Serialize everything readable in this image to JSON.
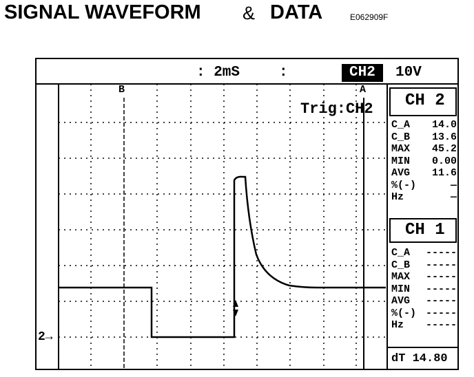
{
  "header": {
    "title": "SIGNAL WAVEFORM",
    "ampersand": "&",
    "title_end": "DATA",
    "code": "E062909F"
  },
  "scope": {
    "timebase_left": ": 2mS",
    "timebase_right": ":",
    "channel": "CH2",
    "volts": "10V",
    "cursor_b": "B",
    "cursor_a": "A",
    "trigger": "Trig:CH2",
    "ground_marker": "2→",
    "ch2": {
      "title": "CH 2",
      "rows": [
        [
          "C_A",
          "14.0"
        ],
        [
          "C_B",
          "13.6"
        ],
        [
          "MAX",
          "45.2"
        ],
        [
          "MIN",
          "0.00"
        ],
        [
          "AVG",
          "11.6"
        ],
        [
          "%(-)",
          "—"
        ],
        [
          "Hz",
          "—"
        ]
      ]
    },
    "ch1": {
      "title": "CH 1",
      "rows": [
        [
          "C_A",
          "-----"
        ],
        [
          "C_B",
          "-----"
        ],
        [
          "MAX",
          "-----"
        ],
        [
          "MIN",
          "-----"
        ],
        [
          "AVG",
          "-----"
        ],
        [
          "%(-)",
          "-----"
        ],
        [
          "Hz",
          "-----"
        ]
      ]
    },
    "dt": "dT 14.80"
  }
}
